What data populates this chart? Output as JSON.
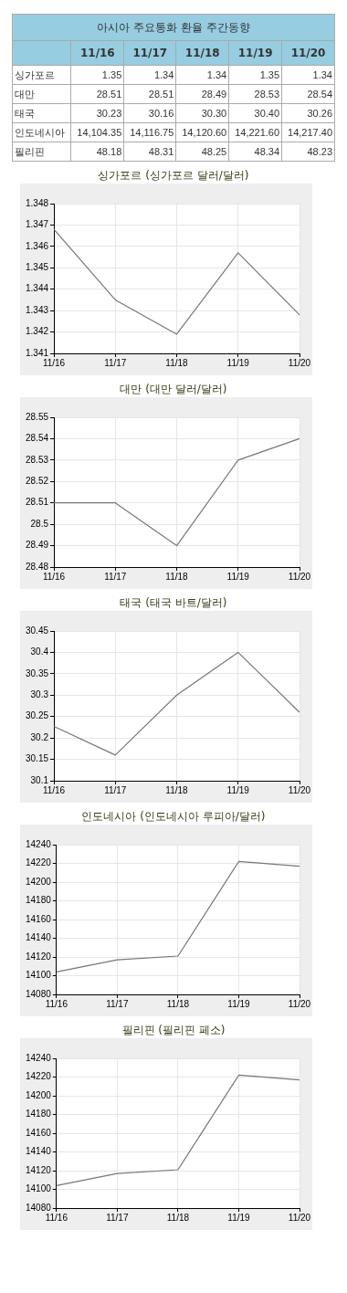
{
  "chart_data": [
    {
      "type": "other",
      "title": "아시아 주요통화 환율 주간동향",
      "categories": [
        "11/16",
        "11/17",
        "11/18",
        "11/19",
        "11/20"
      ],
      "series": [
        {
          "name": "싱가포르",
          "values": [
            1.35,
            1.34,
            1.34,
            1.35,
            1.34
          ],
          "value_labels": [
            "1.35",
            "1.34",
            "1.34",
            "1.35",
            "1.34"
          ]
        },
        {
          "name": "대만",
          "values": [
            28.51,
            28.51,
            28.49,
            28.53,
            28.54
          ],
          "value_labels": [
            "28.51",
            "28.51",
            "28.49",
            "28.53",
            "28.54"
          ]
        },
        {
          "name": "태국",
          "values": [
            30.23,
            30.16,
            30.3,
            30.4,
            30.26
          ],
          "value_labels": [
            "30.23",
            "30.16",
            "30.30",
            "30.40",
            "30.26"
          ]
        },
        {
          "name": "인도네시아",
          "values": [
            14104.35,
            14116.75,
            14120.6,
            14221.6,
            14217.4
          ],
          "value_labels": [
            "14,104.35",
            "14,116.75",
            "14,120.60",
            "14,221.60",
            "14,217.40"
          ]
        },
        {
          "name": "필리핀",
          "values": [
            48.18,
            48.31,
            48.25,
            48.34,
            48.23
          ],
          "value_labels": [
            "48.18",
            "48.31",
            "48.25",
            "48.34",
            "48.23"
          ]
        }
      ]
    },
    {
      "type": "line",
      "title": "싱가포르 (싱가포르 달러/달러)",
      "categories": [
        "11/16",
        "11/17",
        "11/18",
        "11/19",
        "11/20"
      ],
      "series": [
        {
          "color": "#777777",
          "values": [
            1.3468,
            1.3435,
            1.3419,
            1.3457,
            1.3428
          ]
        }
      ],
      "ylim": [
        1.341,
        1.348
      ],
      "yticks": [
        1.341,
        1.342,
        1.343,
        1.344,
        1.345,
        1.346,
        1.347,
        1.348
      ],
      "grid": true,
      "marker": "none",
      "line_style": "solid"
    },
    {
      "type": "line",
      "title": "대만 (대만 달러/달러)",
      "categories": [
        "11/16",
        "11/17",
        "11/18",
        "11/19",
        "11/20"
      ],
      "series": [
        {
          "color": "#777777",
          "values": [
            28.51,
            28.51,
            28.49,
            28.53,
            28.54
          ]
        }
      ],
      "ylim": [
        28.48,
        28.55
      ],
      "yticks": [
        28.48,
        28.49,
        28.5,
        28.51,
        28.52,
        28.53,
        28.54,
        28.55
      ],
      "grid": true,
      "marker": "none",
      "line_style": "solid"
    },
    {
      "type": "line",
      "title": "태국 (태국 바트/달러)",
      "categories": [
        "11/16",
        "11/17",
        "11/18",
        "11/19",
        "11/20"
      ],
      "series": [
        {
          "color": "#777777",
          "values": [
            30.227,
            30.16,
            30.3,
            30.4,
            30.26
          ]
        }
      ],
      "ylim": [
        30.1,
        30.45
      ],
      "yticks": [
        30.1,
        30.15,
        30.2,
        30.25,
        30.3,
        30.35,
        30.4,
        30.45
      ],
      "grid": true,
      "marker": "none",
      "line_style": "solid"
    },
    {
      "type": "line",
      "title": "인도네시아 (인도네시아 루피아/달러)",
      "categories": [
        "11/16",
        "11/17",
        "11/18",
        "11/19",
        "11/20"
      ],
      "series": [
        {
          "color": "#777777",
          "values": [
            14104,
            14117,
            14121,
            14222,
            14217
          ]
        }
      ],
      "ylim": [
        14080,
        14240
      ],
      "yticks": [
        14080,
        14100,
        14120,
        14140,
        14160,
        14180,
        14200,
        14220,
        14240
      ],
      "grid": true,
      "marker": "none",
      "line_style": "solid"
    },
    {
      "type": "line",
      "title": "필리핀 (필리핀 페소)",
      "categories": [
        "11/16",
        "11/17",
        "11/18",
        "11/19",
        "11/20"
      ],
      "series": [
        {
          "color": "#777777",
          "values": [
            14104,
            14117,
            14121,
            14222,
            14217
          ]
        }
      ],
      "ylim": [
        14080,
        14240
      ],
      "yticks": [
        14080,
        14100,
        14120,
        14140,
        14160,
        14180,
        14200,
        14220,
        14240
      ],
      "grid": true,
      "marker": "none",
      "line_style": "solid"
    }
  ]
}
